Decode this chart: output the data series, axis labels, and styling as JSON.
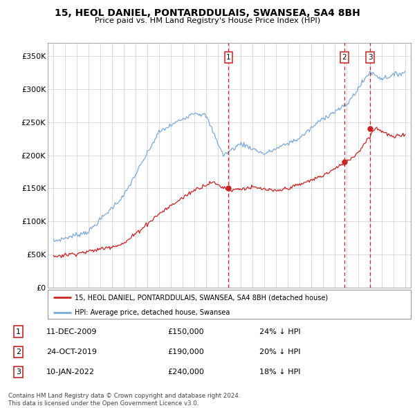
{
  "title": "15, HEOL DANIEL, PONTARDDULAIS, SWANSEA, SA4 8BH",
  "subtitle": "Price paid vs. HM Land Registry's House Price Index (HPI)",
  "transactions": [
    {
      "num": 1,
      "date": "11-DEC-2009",
      "date_x": 2009.94,
      "price": 150000,
      "label": "24% ↓ HPI"
    },
    {
      "num": 2,
      "date": "24-OCT-2019",
      "date_x": 2019.81,
      "price": 190000,
      "label": "20% ↓ HPI"
    },
    {
      "num": 3,
      "date": "10-JAN-2022",
      "date_x": 2022.03,
      "price": 240000,
      "label": "18% ↓ HPI"
    }
  ],
  "hpi_line_color": "#7aabdb",
  "price_line_color": "#cc2222",
  "vline_color": "#cc2222",
  "legend_label_red": "15, HEOL DANIEL, PONTARDDULAIS, SWANSEA, SA4 8BH (detached house)",
  "legend_label_blue": "HPI: Average price, detached house, Swansea",
  "footer1": "Contains HM Land Registry data © Crown copyright and database right 2024.",
  "footer2": "This data is licensed under the Open Government Licence v3.0.",
  "xlim": [
    1994.5,
    2025.5
  ],
  "ylim": [
    0,
    370000
  ],
  "yticks": [
    0,
    50000,
    100000,
    150000,
    200000,
    250000,
    300000,
    350000
  ],
  "ytick_labels": [
    "£0",
    "£50K",
    "£100K",
    "£150K",
    "£200K",
    "£250K",
    "£300K",
    "£350K"
  ],
  "xticks": [
    1995,
    1996,
    1997,
    1998,
    1999,
    2000,
    2001,
    2002,
    2003,
    2004,
    2005,
    2006,
    2007,
    2008,
    2009,
    2010,
    2011,
    2012,
    2013,
    2014,
    2015,
    2016,
    2017,
    2018,
    2019,
    2020,
    2021,
    2022,
    2023,
    2024,
    2025
  ]
}
